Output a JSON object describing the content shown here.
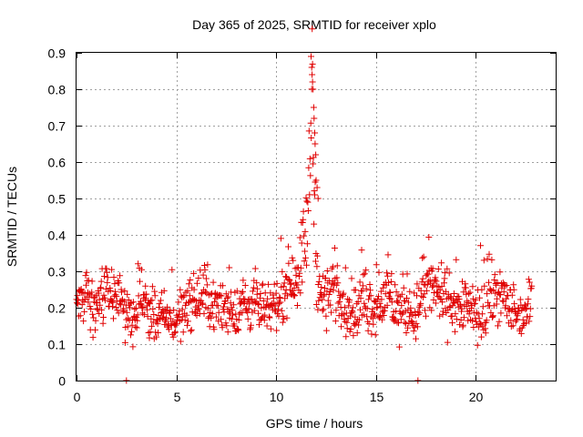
{
  "chart_data": {
    "type": "scatter",
    "title": "Day 365 of 2025, SRMTID for receiver xplo",
    "xlabel": "GPS time / hours",
    "ylabel": "SRMTID / TECUs",
    "xlim": [
      0,
      24
    ],
    "ylim": [
      0,
      0.9
    ],
    "xticks": [
      0,
      5,
      10,
      15,
      20
    ],
    "xtick_labels": [
      "0",
      "5",
      "10",
      "15",
      "20"
    ],
    "yticks": [
      0,
      0.1,
      0.2,
      0.3,
      0.4,
      0.5,
      0.6,
      0.7,
      0.8,
      0.9
    ],
    "ytick_labels": [
      "0",
      "0.1",
      "0.2",
      "0.3",
      "0.4",
      "0.5",
      "0.6",
      "0.7",
      "0.8",
      "0.9"
    ],
    "grid": true,
    "marker": "+",
    "marker_color": "#e00000",
    "series": [
      {
        "name": "SRMTID",
        "description": "approximate trend of ~1000 scattered '+' samples; bulk 0.1-0.3 TECU with a spike near 11.8 h",
        "x": [
          0.0,
          0.2,
          0.4,
          0.5,
          0.6,
          0.8,
          1.0,
          1.2,
          1.5,
          1.8,
          2.0,
          2.2,
          2.5,
          2.6,
          2.8,
          3.0,
          3.3,
          3.6,
          4.0,
          4.3,
          4.6,
          5.0,
          5.3,
          5.6,
          5.9,
          6.2,
          6.5,
          6.8,
          7.1,
          7.4,
          7.7,
          8.0,
          8.3,
          8.6,
          8.9,
          9.2,
          9.5,
          9.8,
          10.0,
          10.3,
          10.6,
          10.9,
          11.2,
          11.5,
          11.7,
          11.8,
          11.9,
          12.0,
          12.1,
          12.3,
          12.6,
          12.9,
          13.2,
          13.5,
          13.8,
          14.1,
          14.4,
          14.7,
          15.0,
          15.3,
          15.6,
          15.9,
          16.2,
          16.5,
          16.8,
          17.1,
          17.4,
          17.7,
          18.0,
          18.3,
          18.6,
          18.9,
          19.2,
          19.5,
          19.8,
          20.1,
          20.4,
          20.7,
          21.0,
          21.3,
          21.6,
          21.9,
          22.2,
          22.5,
          22.8
        ],
        "y": [
          0.21,
          0.24,
          0.19,
          0.33,
          0.22,
          0.18,
          0.2,
          0.23,
          0.25,
          0.22,
          0.24,
          0.21,
          0.17,
          0.19,
          0.15,
          0.18,
          0.24,
          0.2,
          0.16,
          0.18,
          0.17,
          0.16,
          0.2,
          0.22,
          0.21,
          0.23,
          0.24,
          0.21,
          0.19,
          0.2,
          0.21,
          0.18,
          0.22,
          0.2,
          0.23,
          0.19,
          0.18,
          0.21,
          0.2,
          0.24,
          0.27,
          0.29,
          0.31,
          0.4,
          0.62,
          0.8,
          0.55,
          0.38,
          0.26,
          0.22,
          0.24,
          0.27,
          0.22,
          0.21,
          0.2,
          0.18,
          0.24,
          0.21,
          0.2,
          0.22,
          0.24,
          0.2,
          0.19,
          0.21,
          0.17,
          0.2,
          0.24,
          0.26,
          0.25,
          0.23,
          0.22,
          0.21,
          0.19,
          0.22,
          0.18,
          0.17,
          0.19,
          0.21,
          0.25,
          0.23,
          0.21,
          0.19,
          0.18,
          0.19,
          0.22
        ],
        "spread": [
          0.04,
          0.05,
          0.06,
          0.08,
          0.05,
          0.05,
          0.05,
          0.05,
          0.05,
          0.05,
          0.05,
          0.05,
          0.04,
          0.06,
          0.04,
          0.05,
          0.05,
          0.05,
          0.04,
          0.05,
          0.04,
          0.05,
          0.05,
          0.05,
          0.05,
          0.06,
          0.06,
          0.05,
          0.05,
          0.05,
          0.05,
          0.05,
          0.05,
          0.05,
          0.05,
          0.05,
          0.04,
          0.05,
          0.04,
          0.05,
          0.06,
          0.06,
          0.07,
          0.1,
          0.12,
          0.08,
          0.1,
          0.1,
          0.06,
          0.06,
          0.06,
          0.06,
          0.06,
          0.05,
          0.05,
          0.05,
          0.06,
          0.06,
          0.05,
          0.05,
          0.06,
          0.06,
          0.06,
          0.06,
          0.05,
          0.06,
          0.06,
          0.06,
          0.06,
          0.06,
          0.06,
          0.05,
          0.05,
          0.05,
          0.05,
          0.05,
          0.06,
          0.06,
          0.05,
          0.06,
          0.05,
          0.05,
          0.04,
          0.05,
          0.05
        ],
        "spike": {
          "x": [
            11.75,
            11.78,
            11.8,
            11.82,
            11.85,
            11.88,
            11.9,
            11.93,
            11.95,
            11.98,
            12.0,
            12.05,
            12.1
          ],
          "y": [
            0.89,
            0.86,
            0.84,
            0.82,
            0.8,
            0.75,
            0.72,
            0.68,
            0.65,
            0.62,
            0.55,
            0.53,
            0.5
          ]
        },
        "zeros": {
          "x": [
            2.5,
            17.1
          ],
          "y": [
            0,
            0
          ]
        },
        "n_points": 1050
      }
    ]
  }
}
